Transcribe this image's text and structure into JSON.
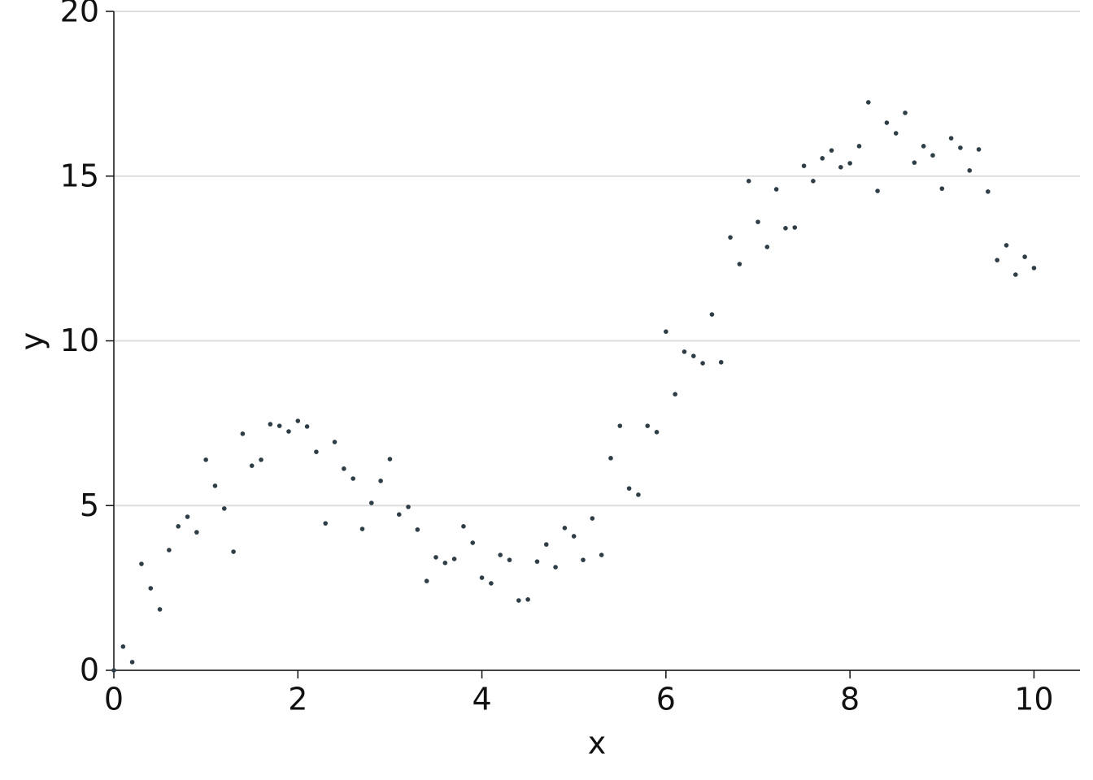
{
  "chart_data": {
    "type": "scatter",
    "xlabel": "x",
    "ylabel": "y",
    "x": [
      0,
      0.1,
      0.2,
      0.3,
      0.4,
      0.5,
      0.6,
      0.7,
      0.8,
      0.9,
      1,
      1.1,
      1.2,
      1.3,
      1.4,
      1.5,
      1.6,
      1.7,
      1.8,
      1.9,
      2,
      2.1,
      2.2,
      2.3,
      2.4,
      2.5,
      2.6,
      2.7,
      2.8,
      2.9,
      3,
      3.1,
      3.2,
      3.3,
      3.4,
      3.5,
      3.6,
      3.7,
      3.8,
      3.9,
      4,
      4.1,
      4.2,
      4.3,
      4.4,
      4.5,
      4.6,
      4.7,
      4.8,
      4.9,
      5,
      5.1,
      5.2,
      5.3,
      5.4,
      5.5,
      5.6,
      5.7,
      5.8,
      5.9,
      6,
      6.1,
      6.2,
      6.3,
      6.4,
      6.5,
      6.6,
      6.7,
      6.8,
      6.9,
      7,
      7.1,
      7.2,
      7.3,
      7.4,
      7.5,
      7.6,
      7.7,
      7.8,
      7.9,
      8,
      8.1,
      8.2,
      8.3,
      8.4,
      8.5,
      8.6,
      8.7,
      8.8,
      8.9,
      9,
      9.1,
      9.2,
      9.3,
      9.4,
      9.5,
      9.6,
      9.7,
      9.8,
      9.9,
      10
    ],
    "series": [
      {
        "color": "#2f3e46",
        "values": [
          0.0,
          0.72,
          0.25,
          3.23,
          2.49,
          1.85,
          3.65,
          4.37,
          4.66,
          4.19,
          6.39,
          5.6,
          4.91,
          3.6,
          7.18,
          6.21,
          6.39,
          7.47,
          7.42,
          7.25,
          7.57,
          7.4,
          6.63,
          4.46,
          6.93,
          6.12,
          5.82,
          4.29,
          5.08,
          5.75,
          6.41,
          4.73,
          4.96,
          4.27,
          2.71,
          3.43,
          3.26,
          3.38,
          4.37,
          3.87,
          2.81,
          2.64,
          3.5,
          3.35,
          2.12,
          2.15,
          3.3,
          3.82,
          3.13,
          4.32,
          4.07,
          3.35,
          4.61,
          3.5,
          6.44,
          7.42,
          5.52,
          5.33,
          7.42,
          7.23,
          10.28,
          8.38,
          9.67,
          9.54,
          9.32,
          10.8,
          9.35,
          13.14,
          12.33,
          14.85,
          13.61,
          12.85,
          14.6,
          13.42,
          13.44,
          15.31,
          14.85,
          15.54,
          15.78,
          15.27,
          15.39,
          15.91,
          17.24,
          14.55,
          16.62,
          16.3,
          16.92,
          15.41,
          15.91,
          15.63,
          14.62,
          16.15,
          15.86,
          15.17,
          15.81,
          14.53,
          12.45,
          12.9,
          12.01,
          12.55,
          12.21
        ]
      }
    ],
    "xlim": [
      0,
      10.5
    ],
    "xticks": [
      0,
      2,
      4,
      6,
      8,
      10
    ],
    "ylim": [
      0,
      20
    ],
    "yticks": [
      0,
      5,
      10,
      15,
      20
    ],
    "grid": true
  }
}
